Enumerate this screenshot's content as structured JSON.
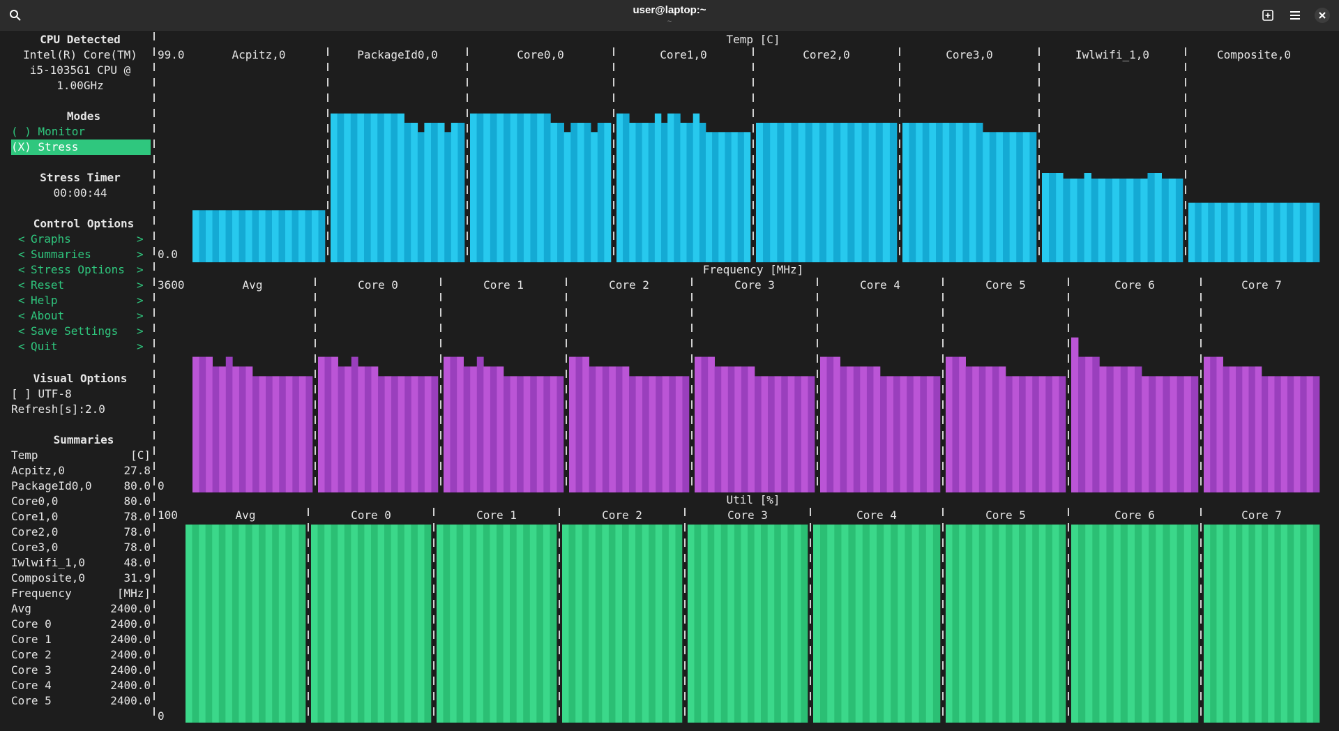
{
  "window": {
    "title": "user@laptop:~",
    "subtitle": "~",
    "icons": [
      "search-icon",
      "new-tab-icon",
      "menu-icon",
      "close-icon"
    ]
  },
  "sidebar": {
    "cpu_header": "CPU Detected",
    "cpu_lines": [
      "Intel(R) Core(TM)",
      "i5-1035G1 CPU @",
      "1.00GHz"
    ],
    "modes_header": "Modes",
    "mode_monitor": "( ) Monitor",
    "mode_stress": "(X) Stress",
    "timer_header": "Stress Timer",
    "timer_value": "00:00:44",
    "control_header": "Control Options",
    "controls": [
      "Graphs",
      "Summaries",
      "Stress Options",
      "Reset",
      "Help",
      "About",
      "Save Settings",
      "Quit"
    ],
    "visual_header": "Visual Options",
    "utf8": "[ ] UTF-8",
    "refresh": "Refresh[s]:2.0",
    "summaries_header": "Summaries",
    "temp_summary": {
      "label": "Temp",
      "unit": "[C]",
      "rows": [
        {
          "name": "Acpitz,0",
          "value": "27.8"
        },
        {
          "name": "PackageId0,0",
          "value": "80.0"
        },
        {
          "name": "Core0,0",
          "value": "80.0"
        },
        {
          "name": "Core1,0",
          "value": "78.0"
        },
        {
          "name": "Core2,0",
          "value": "78.0"
        },
        {
          "name": "Core3,0",
          "value": "78.0"
        },
        {
          "name": "Iwlwifi_1,0",
          "value": "48.0"
        },
        {
          "name": "Composite,0",
          "value": "31.9"
        }
      ]
    },
    "freq_summary": {
      "label": "Frequency",
      "unit": "[MHz]",
      "rows": [
        {
          "name": "Avg",
          "value": "2400.0"
        },
        {
          "name": "Core 0",
          "value": "2400.0"
        },
        {
          "name": "Core 1",
          "value": "2400.0"
        },
        {
          "name": "Core 2",
          "value": "2400.0"
        },
        {
          "name": "Core 3",
          "value": "2400.0"
        },
        {
          "name": "Core 4",
          "value": "2400.0"
        },
        {
          "name": "Core 5",
          "value": "2400.0"
        }
      ]
    }
  },
  "graphs": {
    "temp": {
      "title": "Temp [C]",
      "max_label": "99.0",
      "min_label": "0.0",
      "mid_label": "0",
      "color_a": "#27c9ee",
      "color_b": "#14aad4",
      "max": 99,
      "panels": [
        "Acpitz,0",
        "PackageId0,0",
        "Core0,0",
        "Core1,0",
        "Core2,0",
        "Core3,0",
        "Iwlwifi_1,0",
        "Composite,0"
      ]
    },
    "freq": {
      "title": "Frequency [MHz]",
      "max_label": "3600",
      "min_label": "0",
      "color_a": "#bb55d6",
      "color_b": "#9a3fbd",
      "max": 3600,
      "panels": [
        "Avg",
        "Core 0",
        "Core 1",
        "Core 2",
        "Core 3",
        "Core 4",
        "Core 5",
        "Core 6",
        "Core 7"
      ]
    },
    "util": {
      "title": "Util [%]",
      "max_label": "100",
      "min_label": "0",
      "color_a": "#3bd88a",
      "color_b": "#2bbf74",
      "max": 100,
      "panels": [
        "Avg",
        "Core 0",
        "Core 1",
        "Core 2",
        "Core 3",
        "Core 4",
        "Core 5",
        "Core 6",
        "Core 7"
      ]
    }
  },
  "series": {
    "temp": [
      [
        28,
        28,
        28,
        28,
        28,
        28,
        28,
        28,
        28,
        28,
        28,
        28,
        28,
        28,
        28,
        28,
        28,
        28,
        28,
        28
      ],
      [
        80,
        80,
        80,
        80,
        80,
        80,
        80,
        80,
        80,
        80,
        80,
        75,
        75,
        70,
        75,
        75,
        75,
        70,
        75,
        75
      ],
      [
        80,
        80,
        80,
        80,
        80,
        80,
        80,
        80,
        80,
        80,
        80,
        80,
        75,
        75,
        70,
        75,
        75,
        75,
        70,
        75,
        75
      ],
      [
        80,
        80,
        75,
        75,
        75,
        75,
        80,
        75,
        80,
        80,
        75,
        75,
        80,
        75,
        70,
        70,
        70,
        70,
        70,
        70,
        70
      ],
      [
        75,
        75,
        75,
        75,
        75,
        75,
        75,
        75,
        75,
        75,
        75,
        75,
        75,
        75,
        75,
        75,
        75,
        75,
        75,
        75
      ],
      [
        75,
        75,
        75,
        75,
        75,
        75,
        75,
        75,
        75,
        75,
        75,
        75,
        70,
        70,
        70,
        70,
        70,
        70,
        70,
        70
      ],
      [
        48,
        48,
        48,
        45,
        45,
        45,
        48,
        45,
        45,
        45,
        45,
        45,
        45,
        45,
        45,
        48,
        48,
        45,
        45,
        45
      ],
      [
        32,
        32,
        32,
        32,
        32,
        32,
        32,
        32,
        32,
        32,
        32,
        32,
        32,
        32,
        32,
        32,
        32,
        32,
        32,
        32
      ]
    ],
    "freq": [
      [
        2800,
        2800,
        2800,
        2600,
        2600,
        2800,
        2600,
        2600,
        2600,
        2400,
        2400,
        2400,
        2400,
        2400,
        2400,
        2400,
        2400,
        2400
      ],
      [
        2800,
        2800,
        2800,
        2600,
        2600,
        2800,
        2600,
        2600,
        2600,
        2400,
        2400,
        2400,
        2400,
        2400,
        2400,
        2400,
        2400,
        2400
      ],
      [
        2800,
        2800,
        2800,
        2600,
        2600,
        2800,
        2600,
        2600,
        2600,
        2400,
        2400,
        2400,
        2400,
        2400,
        2400,
        2400,
        2400,
        2400
      ],
      [
        2800,
        2800,
        2800,
        2600,
        2600,
        2600,
        2600,
        2600,
        2600,
        2400,
        2400,
        2400,
        2400,
        2400,
        2400,
        2400,
        2400,
        2400
      ],
      [
        2800,
        2800,
        2800,
        2600,
        2600,
        2600,
        2600,
        2600,
        2600,
        2400,
        2400,
        2400,
        2400,
        2400,
        2400,
        2400,
        2400,
        2400
      ],
      [
        2800,
        2800,
        2800,
        2600,
        2600,
        2600,
        2600,
        2600,
        2600,
        2400,
        2400,
        2400,
        2400,
        2400,
        2400,
        2400,
        2400,
        2400
      ],
      [
        2800,
        2800,
        2800,
        2600,
        2600,
        2600,
        2600,
        2600,
        2600,
        2400,
        2400,
        2400,
        2400,
        2400,
        2400,
        2400,
        2400,
        2400
      ],
      [
        3200,
        2800,
        2800,
        2800,
        2600,
        2600,
        2600,
        2600,
        2600,
        2600,
        2400,
        2400,
        2400,
        2400,
        2400,
        2400,
        2400,
        2400
      ],
      [
        2800,
        2800,
        2800,
        2600,
        2600,
        2600,
        2600,
        2600,
        2600,
        2400,
        2400,
        2400,
        2400,
        2400,
        2400,
        2400,
        2400,
        2400
      ]
    ],
    "util": [
      [
        100,
        100,
        100,
        100,
        100,
        100,
        100,
        100,
        100,
        100,
        100,
        100,
        100,
        100,
        100,
        100,
        100,
        100
      ],
      [
        100,
        100,
        100,
        100,
        100,
        100,
        100,
        100,
        100,
        100,
        100,
        100,
        100,
        100,
        100,
        100,
        100,
        100
      ],
      [
        100,
        100,
        100,
        100,
        100,
        100,
        100,
        100,
        100,
        100,
        100,
        100,
        100,
        100,
        100,
        100,
        100,
        100
      ],
      [
        100,
        100,
        100,
        100,
        100,
        100,
        100,
        100,
        100,
        100,
        100,
        100,
        100,
        100,
        100,
        100,
        100,
        100
      ],
      [
        100,
        100,
        100,
        100,
        100,
        100,
        100,
        100,
        100,
        100,
        100,
        100,
        100,
        100,
        100,
        100,
        100,
        100
      ],
      [
        100,
        100,
        100,
        100,
        100,
        100,
        100,
        100,
        100,
        100,
        100,
        100,
        100,
        100,
        100,
        100,
        100,
        100
      ],
      [
        100,
        100,
        100,
        100,
        100,
        100,
        100,
        100,
        100,
        100,
        100,
        100,
        100,
        100,
        100,
        100,
        100,
        100
      ],
      [
        100,
        100,
        100,
        100,
        100,
        100,
        100,
        100,
        100,
        100,
        100,
        100,
        100,
        100,
        100,
        100,
        100,
        100
      ],
      [
        100,
        100,
        100,
        100,
        100,
        100,
        100,
        100,
        100,
        100,
        100,
        100,
        100,
        100,
        100,
        100,
        100,
        100
      ]
    ]
  }
}
